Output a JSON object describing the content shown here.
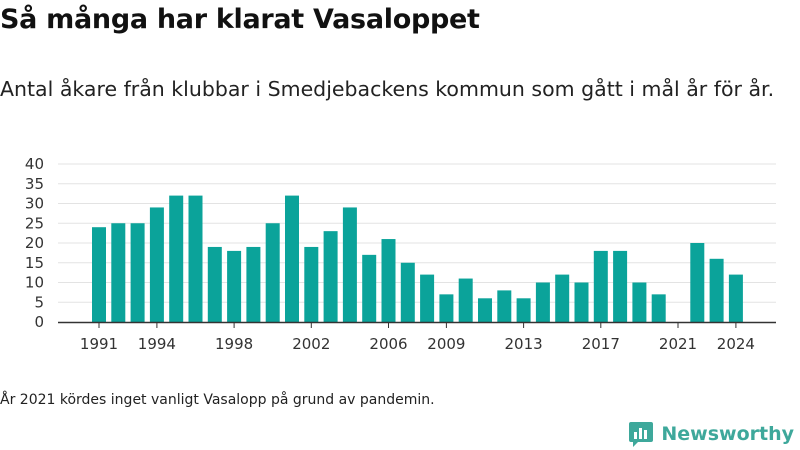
{
  "title": "Så många har klarat Vasaloppet",
  "subtitle": "Antal åkare från klubbar i Smedjebackens kommun som gått i mål år för år.",
  "footnote": "År 2021 kördes inget vanligt Vasalopp på grund av pandemin.",
  "brand": {
    "name": "Newsworthy",
    "icon": "newsworthy-logo-icon"
  },
  "colors": {
    "bar": "#0ba39a",
    "grid": "#e3e3e3",
    "axis": "#333333",
    "brand": "#3ea89b"
  },
  "chart_data": {
    "type": "bar",
    "title": "",
    "xlabel": "",
    "ylabel": "",
    "ylim": [
      0,
      40
    ],
    "yticks": [
      0,
      5,
      10,
      15,
      20,
      25,
      30,
      35,
      40
    ],
    "xticks": [
      1991,
      1994,
      1998,
      2002,
      2006,
      2009,
      2013,
      2017,
      2021,
      2024
    ],
    "grid": true,
    "legend": "none",
    "categories": [
      1991,
      1992,
      1993,
      1994,
      1995,
      1996,
      1997,
      1998,
      1999,
      2000,
      2001,
      2002,
      2003,
      2004,
      2005,
      2006,
      2007,
      2008,
      2009,
      2010,
      2011,
      2012,
      2013,
      2014,
      2015,
      2016,
      2017,
      2018,
      2019,
      2020,
      2021,
      2022,
      2023,
      2024
    ],
    "values": [
      24,
      25,
      25,
      29,
      32,
      32,
      19,
      18,
      19,
      25,
      32,
      19,
      23,
      29,
      17,
      21,
      15,
      12,
      7,
      11,
      6,
      8,
      6,
      10,
      12,
      10,
      18,
      18,
      10,
      7,
      0,
      20,
      16,
      12
    ]
  }
}
